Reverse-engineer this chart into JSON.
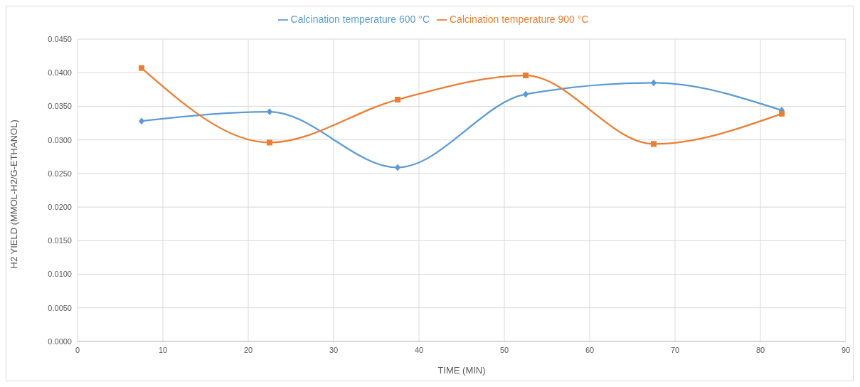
{
  "chart_data": {
    "type": "line",
    "xlabel": "TIME (MIN)",
    "ylabel": "H2 YIELD (MMOL-H2/G-ETHANOL)",
    "x": [
      7.5,
      22.5,
      37.5,
      52.5,
      67.5,
      82.5
    ],
    "series": [
      {
        "name": "Calcination temperature 600 °C",
        "color": "#5b9bd5",
        "marker": "diamond",
        "values": [
          0.0328,
          0.0342,
          0.0259,
          0.0368,
          0.0385,
          0.0344
        ]
      },
      {
        "name": "Calcination temperature 900 °C",
        "color": "#ed7d31",
        "marker": "square",
        "values": [
          0.0407,
          0.0296,
          0.036,
          0.0396,
          0.0294,
          0.0339
        ]
      }
    ],
    "xlim": [
      0,
      90
    ],
    "xticks": [
      0,
      10,
      20,
      30,
      40,
      50,
      60,
      70,
      80,
      90
    ],
    "ylim": [
      0,
      0.045
    ],
    "yticks": [
      {
        "value": 0,
        "label": "0.0000"
      },
      {
        "value": 0.005,
        "label": "0.0050"
      },
      {
        "value": 0.01,
        "label": "0.0100"
      },
      {
        "value": 0.015,
        "label": "0.0150"
      },
      {
        "value": 0.02,
        "label": "0.0200"
      },
      {
        "value": 0.025,
        "label": "0.0250"
      },
      {
        "value": 0.03,
        "label": "0.0300"
      },
      {
        "value": 0.035,
        "label": "0.0350"
      },
      {
        "value": 0.04,
        "label": "0.0400"
      },
      {
        "value": 0.045,
        "label": "0.0450"
      }
    ],
    "grid": true,
    "legend": "top",
    "line_style": "solid"
  }
}
